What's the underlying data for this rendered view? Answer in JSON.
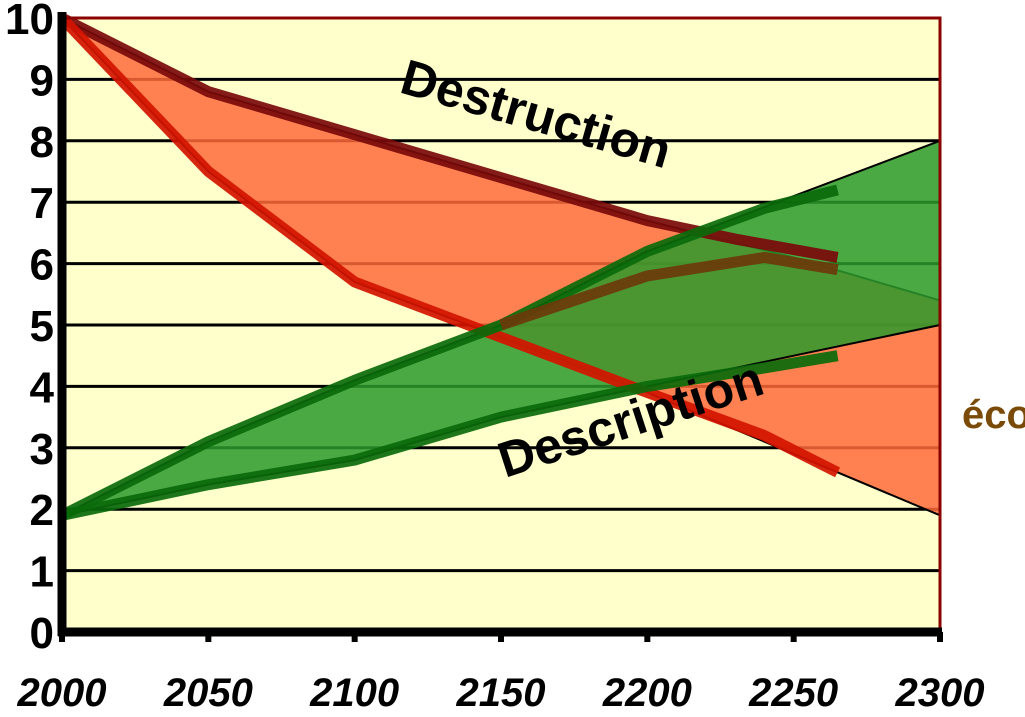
{
  "chart_data": {
    "type": "area",
    "x_ticks": [
      "2000",
      "2050",
      "2100",
      "2150",
      "2200",
      "2250",
      "2300"
    ],
    "y_ticks": [
      "0",
      "1",
      "2",
      "3",
      "4",
      "5",
      "6",
      "7",
      "8",
      "9",
      "10"
    ],
    "xlim": [
      2000,
      2300
    ],
    "ylim": [
      0,
      10
    ],
    "grid": true,
    "annotations": {
      "destruction": "Destruction",
      "description": "Description",
      "right_label": "éco"
    },
    "bands": [
      {
        "id": "destruction-band",
        "color": "#ff6a3a",
        "upper": [
          [
            2000,
            10
          ],
          [
            2050,
            8.8
          ],
          [
            2100,
            8.1
          ],
          [
            2150,
            7.4
          ],
          [
            2200,
            6.7
          ],
          [
            2250,
            6.1
          ],
          [
            2300,
            5.4
          ]
        ],
        "lower": [
          [
            2000,
            10
          ],
          [
            2050,
            7.5
          ],
          [
            2100,
            5.7
          ],
          [
            2150,
            4.8
          ],
          [
            2200,
            3.9
          ],
          [
            2250,
            2.9
          ],
          [
            2300,
            1.9
          ]
        ]
      },
      {
        "id": "description-band",
        "color": "#2c9a2c",
        "upper": [
          [
            2000,
            1.9
          ],
          [
            2050,
            3.1
          ],
          [
            2100,
            4.1
          ],
          [
            2150,
            5.0
          ],
          [
            2200,
            6.2
          ],
          [
            2250,
            7.1
          ],
          [
            2300,
            8.0
          ]
        ],
        "lower": [
          [
            2000,
            1.9
          ],
          [
            2050,
            2.4
          ],
          [
            2100,
            2.8
          ],
          [
            2150,
            3.5
          ],
          [
            2200,
            4.0
          ],
          [
            2250,
            4.5
          ],
          [
            2300,
            5.0
          ]
        ]
      }
    ],
    "series": [
      {
        "color": "#7a0a0a",
        "x": [
          2000,
          2050,
          2100,
          2150,
          2200,
          2230,
          2265
        ],
        "y": [
          10,
          8.8,
          8.1,
          7.4,
          6.7,
          6.4,
          6.1
        ]
      },
      {
        "color": "#d41400",
        "x": [
          2000,
          2050,
          2100,
          2150,
          2200,
          2240,
          2265
        ],
        "y": [
          10,
          7.5,
          5.7,
          4.8,
          3.9,
          3.2,
          2.6
        ]
      },
      {
        "color": "#0a6a0a",
        "x": [
          2000,
          2050,
          2100,
          2150,
          2200,
          2240,
          2265
        ],
        "y": [
          1.9,
          3.1,
          4.1,
          5.0,
          6.2,
          6.9,
          7.2
        ]
      },
      {
        "color": "#0a6a0a",
        "x": [
          2000,
          2050,
          2100,
          2150,
          2200,
          2240,
          2265
        ],
        "y": [
          1.9,
          2.4,
          2.8,
          3.5,
          4.0,
          4.3,
          4.5
        ]
      },
      {
        "color": "#6b3a0a",
        "x": [
          2150,
          2200,
          2240,
          2265
        ],
        "y": [
          5.0,
          5.8,
          6.1,
          5.9
        ]
      }
    ],
    "colors": {
      "plot_background": "#ffffcc",
      "gridline": "#000000",
      "frame": "#8b0000",
      "axis": "#000000"
    }
  }
}
